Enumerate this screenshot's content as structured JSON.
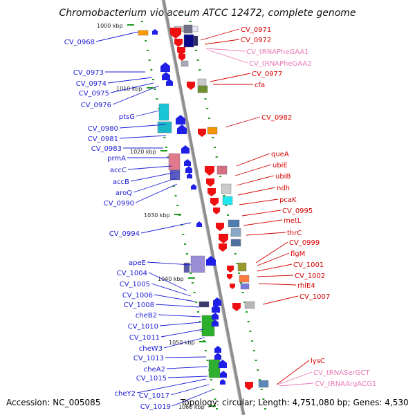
{
  "title": "Chromobacterium violaceum ATCC 12472, complete genome",
  "footer": {
    "accession": "Accession: NC_005085",
    "topology": "Topology: circular; Length: 4,751,080 bp; Genes: 4,530"
  },
  "kbp_marks": [
    "1000 kbp",
    "1010 kbp",
    "1020 kbp",
    "1030 kbp",
    "1040 kbp",
    "1050 kbp",
    "1060 kbp"
  ],
  "left_labels": [
    "CV_0968",
    "CV_0973",
    "CV_0974",
    "CV_0975",
    "CV_0976",
    "ptsG",
    "CV_0980",
    "CV_0981",
    "CV_0983",
    "prmA",
    "accC",
    "accB",
    "aroQ",
    "CV_0990",
    "CV_0994",
    "apeE",
    "CV_1004",
    "CV_1005",
    "CV_1006",
    "CV_1008",
    "cheB2",
    "CV_1010",
    "CV_1011",
    "cheW3",
    "CV_1013",
    "cheA2",
    "CV_1015",
    "cheY2",
    "CV_1017",
    "CV_1019"
  ],
  "right_labels": [
    "CV_0971",
    "CV_0972",
    "CV_tRNAPheGAA1",
    "CV_tRNAPheGAA2",
    "CV_0977",
    "cfa",
    "CV_0982",
    "queA",
    "ubiE",
    "ubiB",
    "ndh",
    "pcaK",
    "CV_0995",
    "metL",
    "thrC",
    "CV_0999",
    "flgM",
    "CV_1001",
    "CV_1002",
    "rhlE4",
    "CV_1007",
    "lysC",
    "CV_tRNASerGCT",
    "CV_tRNAArgACG1"
  ],
  "colors": {
    "left_label": "#1a1ad6",
    "right_label": "#d40000",
    "trna_label": "#e87ab8",
    "backbone": "#9a9a9a",
    "left_strand_gene": "#1f1fe6",
    "right_strand_gene": "#ee1010",
    "tick_green": "#1e9a1e"
  }
}
